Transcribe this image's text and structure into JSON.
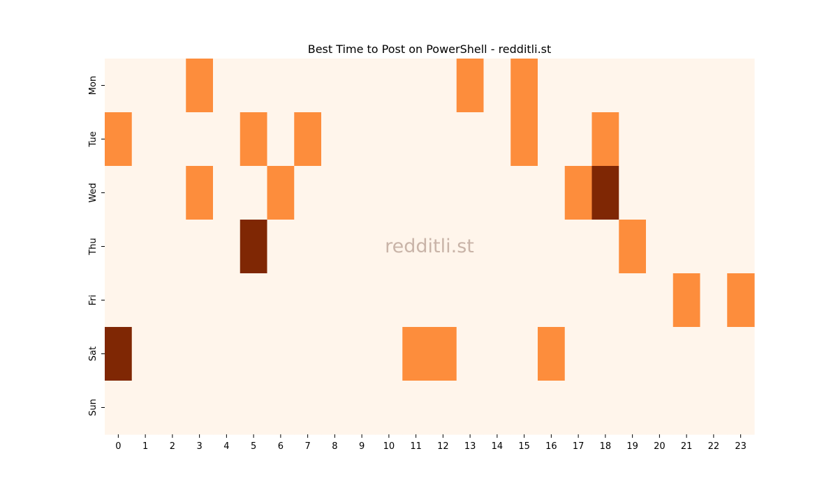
{
  "chart_data": {
    "type": "heatmap",
    "title": "Best Time to Post on PowerShell - redditli.st",
    "xlabel": "",
    "ylabel": "",
    "x": [
      0,
      1,
      2,
      3,
      4,
      5,
      6,
      7,
      8,
      9,
      10,
      11,
      12,
      13,
      14,
      15,
      16,
      17,
      18,
      19,
      20,
      21,
      22,
      23
    ],
    "x_tick_labels": [
      "0",
      "1",
      "2",
      "3",
      "4",
      "5",
      "6",
      "7",
      "8",
      "9",
      "10",
      "11",
      "12",
      "13",
      "14",
      "15",
      "16",
      "17",
      "18",
      "19",
      "20",
      "21",
      "22",
      "23"
    ],
    "y": [
      "Mon",
      "Tue",
      "Wed",
      "Thu",
      "Fri",
      "Sat",
      "Sun"
    ],
    "values": [
      [
        0,
        0,
        0,
        1,
        0,
        0,
        0,
        0,
        0,
        0,
        0,
        0,
        0,
        1,
        0,
        1,
        0,
        0,
        0,
        0,
        0,
        0,
        0,
        0
      ],
      [
        1,
        0,
        0,
        0,
        0,
        1,
        0,
        1,
        0,
        0,
        0,
        0,
        0,
        0,
        0,
        1,
        0,
        0,
        1,
        0,
        0,
        0,
        0,
        0
      ],
      [
        0,
        0,
        0,
        1,
        0,
        0,
        1,
        0,
        0,
        0,
        0,
        0,
        0,
        0,
        0,
        0,
        0,
        1,
        2,
        0,
        0,
        0,
        0,
        0
      ],
      [
        0,
        0,
        0,
        0,
        0,
        2,
        0,
        0,
        0,
        0,
        0,
        0,
        0,
        0,
        0,
        0,
        0,
        0,
        0,
        1,
        0,
        0,
        0,
        0
      ],
      [
        0,
        0,
        0,
        0,
        0,
        0,
        0,
        0,
        0,
        0,
        0,
        0,
        0,
        0,
        0,
        0,
        0,
        0,
        0,
        0,
        0,
        1,
        0,
        1
      ],
      [
        2,
        0,
        0,
        0,
        0,
        0,
        0,
        0,
        0,
        0,
        0,
        1,
        1,
        0,
        0,
        0,
        1,
        0,
        0,
        0,
        0,
        0,
        0,
        0
      ],
      [
        0,
        0,
        0,
        0,
        0,
        0,
        0,
        0,
        0,
        0,
        0,
        0,
        0,
        0,
        0,
        0,
        0,
        0,
        0,
        0,
        0,
        0,
        0,
        0
      ]
    ],
    "colormap": "Oranges",
    "colors": {
      "0": "#fff5eb",
      "1": "#fd8d3c",
      "2": "#7f2704"
    },
    "colorbar": false,
    "grid": false,
    "watermark": "redditli.st"
  }
}
